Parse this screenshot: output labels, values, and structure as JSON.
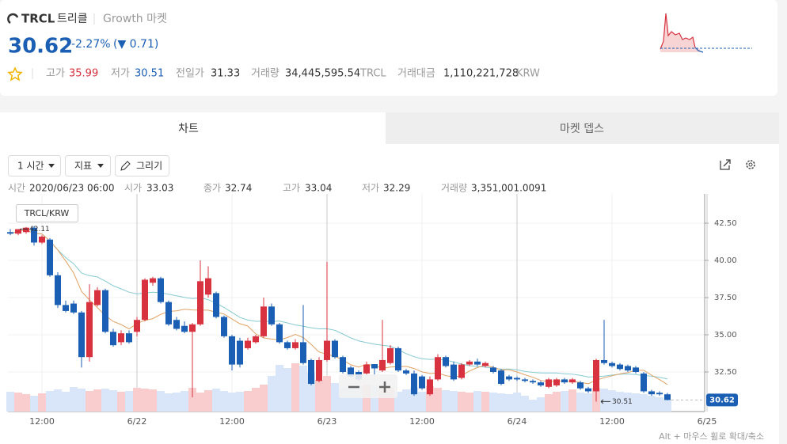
{
  "header": {
    "symbol": "TRCL",
    "name": "트리클",
    "market": "Growth 마켓",
    "price": "30.62",
    "change_rate": "-2.27%",
    "change": "(▼ 0.71)",
    "stats": [
      {
        "label": "고가",
        "value": "35.99"
      },
      {
        "label": "저가",
        "value": "30.51"
      },
      {
        "label": "전일가",
        "value": "31.33"
      },
      {
        "label": "거래량",
        "value": "34,445,595.54",
        "unit": "TRCL"
      },
      {
        "label": "거래대금",
        "value": "1,110,221,728",
        "unit": "KRW"
      }
    ]
  },
  "tabs": [
    "차트",
    "마켓 뎁스"
  ],
  "toolbar": [
    "1 시간",
    "지표",
    "그리기"
  ],
  "crosshair": {
    "labels": [
      "시간",
      "시가",
      "종가",
      "고가",
      "저가",
      "거래량"
    ],
    "time": "2020/06/23 06:00",
    "volume": "3,351,001.0091"
  },
  "hint": "Alt + 마우스 휠로 확대/축소",
  "chart_data": {
    "type": "candlestick",
    "legend": "TRCL/KRW",
    "up_color": "#d8313f",
    "down_color": "#1a5fb4",
    "xlim": [
      -0.3,
      88.2
    ],
    "xticks": [
      {
        "value": 4,
        "label": "12:00"
      },
      {
        "value": 16,
        "label": "6/22"
      },
      {
        "value": 28,
        "label": "12:00"
      },
      {
        "value": 40,
        "label": "6/23"
      },
      {
        "value": 52,
        "label": "12:00"
      },
      {
        "value": 64,
        "label": "6/24"
      },
      {
        "value": 76,
        "label": "12:00"
      },
      {
        "value": 88,
        "label": "6/25"
      }
    ],
    "ylim": [
      29.84,
      44.47
    ],
    "yticks": [
      {
        "value": 32.5,
        "label": "32.50"
      },
      {
        "value": 35,
        "label": "35.00"
      },
      {
        "value": 37.5,
        "label": "37.50"
      },
      {
        "value": 40,
        "label": "40.00"
      },
      {
        "value": 42.5,
        "label": "42.50"
      }
    ],
    "open": [
      41.9,
      41.8,
      41.9,
      42.2,
      41.2,
      41.4,
      39.0,
      37.0,
      37.1,
      36.5,
      33.5,
      37.0,
      38.0,
      35.2,
      34.5,
      35.1,
      35.2,
      36.0,
      38.5,
      38.8,
      37.2,
      36.0,
      35.6,
      35.2,
      35.7,
      37.7,
      37.8,
      36.2,
      34.9,
      34.6,
      34.1,
      34.5,
      34.9,
      36.9,
      35.7,
      34.5,
      34.1,
      34.5,
      33.3,
      31.9,
      33.3,
      34.6,
      33.5,
      32.8,
      32.5,
      32.4,
      33.03,
      32.6,
      33.1,
      34.1,
      32.6,
      32.4,
      32.2,
      31.0,
      32.0,
      33.5,
      33.0,
      32.1,
      33.0,
      33.2,
      32.9,
      32.8,
      32.6,
      32.2,
      32.1,
      32.0,
      31.9,
      31.8,
      31.5,
      31.6,
      32.0,
      31.8,
      31.8,
      31.4,
      31.2,
      33.3,
      33.1,
      33.0,
      32.9,
      32.8,
      32.4,
      31.2,
      31.1,
      31.0
    ],
    "high": [
      42.1,
      42.11,
      42.25,
      42.3,
      41.7,
      41.5,
      39.2,
      37.3,
      37.3,
      36.6,
      38.4,
      38.2,
      38.1,
      35.4,
      35.3,
      35.3,
      36.2,
      38.8,
      38.9,
      38.9,
      37.3,
      36.2,
      35.9,
      35.8,
      40.0,
      39.6,
      37.9,
      36.3,
      35.0,
      34.8,
      34.8,
      35.0,
      37.5,
      37.1,
      35.8,
      34.6,
      34.7,
      37.0,
      33.4,
      33.5,
      39.9,
      34.7,
      33.6,
      32.9,
      32.6,
      33.2,
      33.04,
      36.0,
      34.3,
      34.2,
      32.7,
      32.6,
      32.3,
      32.2,
      33.7,
      33.6,
      33.2,
      33.1,
      33.3,
      33.4,
      33.2,
      32.9,
      32.7,
      32.3,
      32.2,
      32.1,
      32.0,
      31.9,
      32.1,
      32.1,
      32.1,
      32.1,
      31.9,
      31.5,
      33.4,
      36.0,
      33.2,
      33.1,
      33.0,
      32.9,
      32.5,
      31.3,
      31.2,
      31.1
    ],
    "low": [
      41.7,
      41.7,
      41.8,
      41.0,
      41.1,
      38.9,
      36.8,
      36.5,
      36.4,
      32.8,
      33.2,
      36.9,
      35.1,
      34.2,
      34.3,
      34.4,
      34.9,
      35.9,
      38.3,
      37.1,
      35.6,
      35.3,
      35.1,
      30.8,
      35.6,
      37.5,
      36.1,
      34.8,
      32.6,
      32.8,
      34.0,
      34.4,
      34.8,
      35.6,
      34.4,
      34.0,
      34.0,
      33.0,
      31.6,
      31.8,
      33.2,
      33.4,
      32.4,
      32.1,
      31.9,
      32.3,
      32.29,
      32.5,
      33.0,
      32.5,
      32.3,
      30.9,
      31.3,
      30.9,
      31.9,
      32.8,
      31.9,
      32.0,
      32.9,
      32.9,
      32.8,
      32.4,
      31.6,
      31.9,
      31.9,
      31.8,
      31.7,
      31.5,
      31.4,
      31.5,
      31.7,
      31.7,
      31.3,
      31.1,
      30.51,
      33.0,
      32.8,
      32.6,
      32.5,
      32.4,
      31.1,
      30.9,
      30.9,
      30.6
    ],
    "close": [
      41.8,
      42.1,
      42.2,
      41.2,
      41.6,
      39.0,
      37.0,
      36.6,
      36.5,
      33.5,
      37.2,
      38.0,
      35.2,
      34.3,
      35.1,
      34.5,
      36.0,
      38.7,
      38.8,
      37.2,
      35.7,
      35.4,
      35.2,
      35.7,
      38.6,
      38.8,
      36.2,
      34.9,
      33.0,
      33.0,
      34.6,
      34.9,
      36.9,
      35.7,
      34.5,
      34.1,
      34.5,
      33.1,
      31.7,
      33.3,
      34.6,
      33.5,
      32.5,
      32.2,
      32.0,
      33.0,
      32.74,
      33.3,
      34.1,
      32.6,
      32.4,
      31.0,
      31.4,
      32.0,
      33.5,
      32.9,
      32.0,
      33.0,
      33.2,
      33.0,
      33.1,
      32.5,
      31.7,
      32.0,
      32.0,
      31.9,
      31.8,
      31.6,
      32.0,
      32.0,
      31.8,
      32.0,
      31.4,
      31.2,
      33.3,
      33.1,
      32.9,
      32.7,
      32.6,
      32.5,
      31.2,
      31.0,
      31.0,
      30.62
    ],
    "volume": [
      2500000,
      2400000,
      2200000,
      2000000,
      2300000,
      2600000,
      2800000,
      2500000,
      3100000,
      2900000,
      2600000,
      2800000,
      2900000,
      2700000,
      2500000,
      2600000,
      3000000,
      2900000,
      2800000,
      2600000,
      2300000,
      2400000,
      2600000,
      3000000,
      2400000,
      2700000,
      2900000,
      2600000,
      2400000,
      2500000,
      2600000,
      3000000,
      3400000,
      4500000,
      5900000,
      5500000,
      6100000,
      5800000,
      4900000,
      4000000,
      4500000,
      3600000,
      3000000,
      3300000,
      3100000,
      3400000,
      3351001.0091,
      2800000,
      3000000,
      2500000,
      2800000,
      3000000,
      2500000,
      3200000,
      3000000,
      2700000,
      2600000,
      2500000,
      2400000,
      2600000,
      2500000,
      2400000,
      2300000,
      2200000,
      2400000,
      2000000,
      1500000,
      1800000,
      2200000,
      2500000,
      2600000,
      2800000,
      2400000,
      2300000,
      3000000,
      2900000,
      2700000,
      2500000,
      2400000,
      2300000,
      2200000,
      2000000,
      1800000,
      1500000
    ]
  }
}
